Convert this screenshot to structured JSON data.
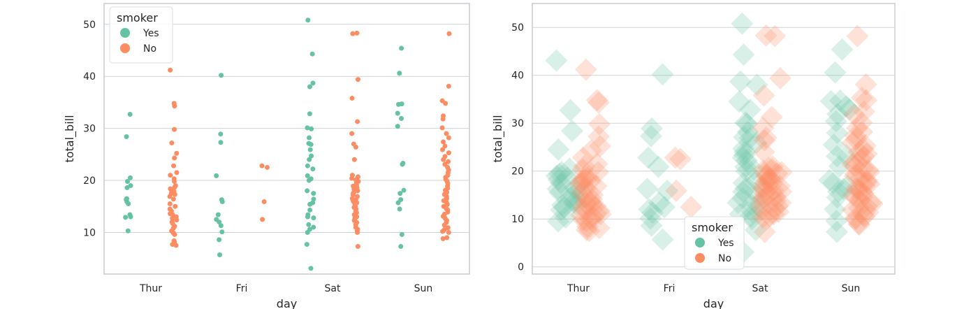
{
  "figure": {
    "colors": {
      "Yes": "#66c2a5",
      "No": "#fc8d62",
      "grid": "#cfd3d6",
      "frame": "#c5ccd0"
    }
  },
  "chart_data": [
    {
      "type": "scatter",
      "subtype": "stripplot",
      "xlabel": "day",
      "ylabel": "total_bill",
      "categories": [
        "Thur",
        "Fri",
        "Sat",
        "Sun"
      ],
      "ylim": [
        2,
        54
      ],
      "yticks": [
        10,
        20,
        30,
        40,
        50
      ],
      "grid": true,
      "legend": {
        "title": "smoker",
        "placement": "top-left",
        "entries": [
          "Yes",
          "No"
        ]
      },
      "marker": "circle",
      "series": [
        {
          "name": "Yes",
          "values": {
            "Thur": [
              32.7,
              28.4,
              20.5,
              19.8,
              19.0,
              18.6,
              16.5,
              16.3,
              15.9,
              15.5,
              13.4,
              13.0,
              12.9,
              10.3
            ],
            "Fri": [
              40.2,
              28.9,
              27.3,
              20.9,
              16.3,
              15.9,
              13.4,
              12.5,
              12.0,
              11.3,
              10.1,
              8.6,
              5.7
            ],
            "Sat": [
              50.8,
              44.3,
              38.7,
              38.0,
              32.8,
              30.1,
              29.9,
              28.2,
              27.1,
              26.9,
              25.9,
              24.7,
              24.0,
              22.8,
              22.2,
              20.9,
              20.3,
              20.0,
              18.0,
              17.5,
              16.4,
              15.7,
              15.4,
              14.3,
              13.4,
              13.0,
              12.8,
              11.5,
              11.0,
              10.6,
              10.0,
              7.7,
              3.1
            ],
            "Sun": [
              45.4,
              40.6,
              34.7,
              34.6,
              32.9,
              31.9,
              30.4,
              23.3,
              23.1,
              18.1,
              17.5,
              16.3,
              15.7,
              14.5,
              9.6,
              7.3
            ]
          }
        },
        {
          "name": "No",
          "values": {
            "Thur": [
              41.2,
              34.8,
              34.3,
              29.8,
              27.2,
              25.2,
              24.3,
              22.8,
              21.5,
              21.0,
              20.3,
              19.8,
              19.0,
              18.7,
              18.4,
              18.0,
              17.9,
              17.5,
              17.3,
              16.9,
              16.4,
              15.5,
              15.0,
              14.5,
              14.1,
              13.6,
              13.4,
              13.0,
              12.7,
              12.4,
              12.0,
              11.7,
              11.2,
              11.0,
              10.8,
              10.3,
              10.0,
              9.8,
              9.6,
              8.4,
              8.1,
              7.7,
              7.5
            ],
            "Fri": [
              22.8,
              22.5,
              15.9,
              12.5
            ],
            "Sat": [
              48.3,
              48.2,
              39.4,
              35.8,
              31.3,
              29.0,
              27.0,
              26.4,
              24.0,
              21.0,
              20.7,
              20.4,
              20.1,
              19.8,
              19.5,
              19.2,
              18.9,
              18.6,
              18.3,
              18.0,
              17.8,
              17.5,
              17.2,
              16.9,
              16.5,
              16.3,
              16.0,
              15.7,
              15.4,
              15.0,
              14.8,
              14.5,
              14.1,
              13.8,
              13.4,
              13.0,
              12.7,
              12.3,
              11.9,
              11.5,
              11.0,
              10.6,
              10.3,
              10.0,
              7.3
            ],
            "Sun": [
              48.2,
              38.1,
              35.3,
              34.8,
              32.4,
              31.8,
              30.1,
              29.0,
              28.2,
              27.4,
              26.6,
              25.9,
              25.3,
              24.6,
              24.0,
              23.6,
              23.1,
              22.5,
              22.0,
              21.5,
              21.0,
              20.6,
              20.2,
              19.8,
              19.4,
              18.9,
              18.5,
              18.1,
              17.7,
              17.3,
              16.9,
              16.5,
              16.1,
              15.8,
              15.4,
              15.0,
              14.6,
              14.3,
              13.9,
              13.5,
              13.1,
              12.7,
              12.3,
              11.9,
              11.4,
              10.9,
              10.5,
              10.2,
              10.0,
              9.0,
              8.8
            ]
          }
        }
      ]
    },
    {
      "type": "scatter",
      "subtype": "stripplot",
      "xlabel": "day",
      "ylabel": "total_bill",
      "categories": [
        "Thur",
        "Fri",
        "Sat",
        "Sun"
      ],
      "ylim": [
        -1.5,
        55
      ],
      "yticks": [
        0,
        10,
        20,
        30,
        40,
        50
      ],
      "grid": true,
      "legend": {
        "title": "smoker",
        "placement": "lower-center",
        "entries": [
          "Yes",
          "No"
        ]
      },
      "marker": "diamond",
      "marker_alpha": 0.25,
      "series": [
        {
          "name": "Yes",
          "values": {
            "Thur": [
              43.1,
              32.7,
              28.4,
              24.5,
              20.5,
              19.8,
              19.4,
              19.0,
              18.6,
              18.2,
              17.5,
              16.5,
              16.3,
              15.9,
              15.5,
              15.0,
              14.5,
              13.8,
              13.4,
              13.0,
              12.9,
              12.4,
              11.9,
              10.3,
              9.5
            ],
            "Fri": [
              40.2,
              28.9,
              27.3,
              22.8,
              20.9,
              16.3,
              15.9,
              13.4,
              12.5,
              12.0,
              11.3,
              10.1,
              8.6,
              5.7
            ],
            "Sat": [
              50.8,
              44.3,
              38.7,
              38.0,
              34.5,
              32.8,
              30.1,
              29.9,
              28.2,
              27.1,
              26.9,
              25.9,
              24.7,
              24.0,
              23.4,
              22.8,
              22.2,
              20.9,
              20.3,
              20.0,
              18.0,
              17.5,
              16.4,
              15.7,
              15.4,
              14.3,
              13.4,
              13.0,
              12.8,
              11.5,
              11.0,
              10.6,
              10.0,
              7.7,
              3.1
            ],
            "Sun": [
              45.4,
              40.6,
              34.7,
              34.6,
              33.5,
              32.9,
              31.9,
              30.4,
              28.0,
              25.5,
              23.3,
              23.1,
              21.0,
              18.1,
              17.5,
              16.9,
              16.3,
              15.7,
              14.5,
              12.0,
              9.6,
              7.3
            ]
          }
        },
        {
          "name": "No",
          "values": {
            "Thur": [
              41.2,
              34.8,
              34.3,
              29.8,
              27.2,
              25.2,
              24.3,
              22.8,
              21.5,
              21.0,
              20.3,
              19.8,
              19.0,
              18.7,
              18.4,
              18.0,
              17.9,
              17.5,
              17.3,
              16.9,
              16.4,
              15.5,
              15.0,
              14.5,
              14.1,
              13.6,
              13.4,
              13.0,
              12.7,
              12.4,
              12.0,
              11.7,
              11.2,
              11.0,
              10.8,
              10.3,
              10.0,
              9.8,
              9.6,
              8.4,
              8.1,
              7.7,
              7.5
            ],
            "Fri": [
              22.8,
              22.5,
              15.9,
              12.5
            ],
            "Sat": [
              48.3,
              48.2,
              39.4,
              35.8,
              31.3,
              29.0,
              27.0,
              26.4,
              24.0,
              21.0,
              20.7,
              20.4,
              20.1,
              19.8,
              19.5,
              19.2,
              18.9,
              18.6,
              18.3,
              18.0,
              17.8,
              17.5,
              17.2,
              16.9,
              16.5,
              16.3,
              16.0,
              15.7,
              15.4,
              15.0,
              14.8,
              14.5,
              14.1,
              13.8,
              13.4,
              13.0,
              12.7,
              12.3,
              11.9,
              11.5,
              11.0,
              10.6,
              10.3,
              10.0,
              7.3
            ],
            "Sun": [
              48.2,
              38.1,
              35.3,
              34.8,
              32.4,
              31.8,
              30.1,
              29.0,
              28.2,
              27.4,
              26.6,
              25.9,
              25.3,
              24.6,
              24.0,
              23.6,
              23.1,
              22.5,
              22.0,
              21.5,
              21.0,
              20.6,
              20.2,
              19.8,
              19.4,
              18.9,
              18.5,
              18.1,
              17.7,
              17.3,
              16.9,
              16.5,
              16.1,
              15.8,
              15.4,
              15.0,
              14.6,
              14.3,
              13.9,
              13.5,
              13.1,
              12.7,
              12.3,
              11.9,
              11.4,
              10.9,
              10.5,
              10.2,
              10.0,
              9.0,
              8.8
            ]
          }
        }
      ]
    }
  ]
}
